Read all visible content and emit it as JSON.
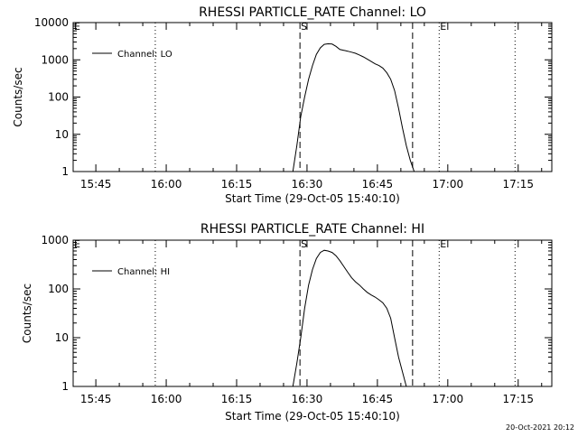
{
  "footer": {
    "timestamp": "20-Oct-2021 20:12"
  },
  "chart_data": [
    {
      "type": "line",
      "title": "RHESSI PARTICLE_RATE Channel: LO",
      "xlabel": "Start Time (29-Oct-05 15:40:10)",
      "ylabel": "Counts/sec",
      "y_scale": "log",
      "ylim": [
        1,
        10000
      ],
      "xlim": [
        "15:40:10",
        "17:22:10"
      ],
      "x_tick_labels": [
        "15:45",
        "16:00",
        "16:15",
        "16:30",
        "16:45",
        "17:00",
        "17:15"
      ],
      "y_tick_labels": [
        "1",
        "10",
        "100",
        "1000",
        "10000"
      ],
      "legend": {
        "position": "top-left",
        "entries": [
          "Channel: LO"
        ]
      },
      "markers": [
        {
          "label": "S",
          "time": "16:28:30",
          "style": "dashed"
        },
        {
          "label": "",
          "time": "16:52:30",
          "style": "dashed"
        },
        {
          "label": "E",
          "time": "16:58:10",
          "style": "dotted"
        },
        {
          "label": "",
          "time": "15:57:40",
          "style": "dotted"
        },
        {
          "label": "",
          "time": "17:14:20",
          "style": "dotted"
        }
      ],
      "series": [
        {
          "name": "Channel: LO",
          "x": [
            "16:27:00",
            "16:27:50",
            "16:28:40",
            "16:29:30",
            "16:30:20",
            "16:31:10",
            "16:32:00",
            "16:32:50",
            "16:33:40",
            "16:34:30",
            "16:35:20",
            "16:36:10",
            "16:37:00",
            "16:37:50",
            "16:38:40",
            "16:39:30",
            "16:40:20",
            "16:41:10",
            "16:42:00",
            "16:42:50",
            "16:43:40",
            "16:44:30",
            "16:45:20",
            "16:46:10",
            "16:47:00",
            "16:47:50",
            "16:48:40",
            "16:49:30",
            "16:50:20",
            "16:51:10",
            "16:52:00",
            "16:52:50",
            "16:53:40"
          ],
          "values": [
            1,
            5,
            30,
            100,
            300,
            700,
            1400,
            2100,
            2600,
            2700,
            2650,
            2300,
            1900,
            1800,
            1700,
            1600,
            1500,
            1350,
            1200,
            1050,
            900,
            780,
            700,
            600,
            450,
            300,
            150,
            50,
            15,
            5,
            2,
            1,
            1
          ]
        }
      ]
    },
    {
      "type": "line",
      "title": "RHESSI PARTICLE_RATE Channel: HI",
      "xlabel": "Start Time (29-Oct-05 15:40:10)",
      "ylabel": "Counts/sec",
      "y_scale": "log",
      "ylim": [
        1,
        1000
      ],
      "xlim": [
        "15:40:10",
        "17:22:10"
      ],
      "x_tick_labels": [
        "15:45",
        "16:00",
        "16:15",
        "16:30",
        "16:45",
        "17:00",
        "17:15"
      ],
      "y_tick_labels": [
        "1",
        "10",
        "100",
        "1000"
      ],
      "legend": {
        "position": "top-left",
        "entries": [
          "Channel: HI"
        ]
      },
      "markers": [
        {
          "label": "S",
          "time": "16:28:30",
          "style": "dashed"
        },
        {
          "label": "",
          "time": "16:52:30",
          "style": "dashed"
        },
        {
          "label": "E",
          "time": "16:58:10",
          "style": "dotted"
        },
        {
          "label": "",
          "time": "15:57:40",
          "style": "dotted"
        },
        {
          "label": "",
          "time": "17:14:20",
          "style": "dotted"
        }
      ],
      "series": [
        {
          "name": "Channel: HI",
          "x": [
            "16:27:00",
            "16:27:50",
            "16:28:40",
            "16:29:30",
            "16:30:20",
            "16:31:10",
            "16:32:00",
            "16:32:50",
            "16:33:40",
            "16:34:30",
            "16:35:20",
            "16:36:10",
            "16:37:00",
            "16:37:50",
            "16:38:40",
            "16:39:30",
            "16:40:20",
            "16:41:10",
            "16:42:00",
            "16:42:50",
            "16:43:40",
            "16:44:30",
            "16:45:20",
            "16:46:10",
            "16:47:00",
            "16:47:50",
            "16:48:40",
            "16:49:30",
            "16:50:20",
            "16:51:10"
          ],
          "values": [
            1,
            3,
            10,
            40,
            120,
            250,
            420,
            560,
            620,
            600,
            560,
            480,
            380,
            290,
            220,
            170,
            140,
            120,
            100,
            85,
            75,
            68,
            60,
            52,
            40,
            25,
            10,
            4,
            2,
            1
          ]
        }
      ]
    }
  ]
}
